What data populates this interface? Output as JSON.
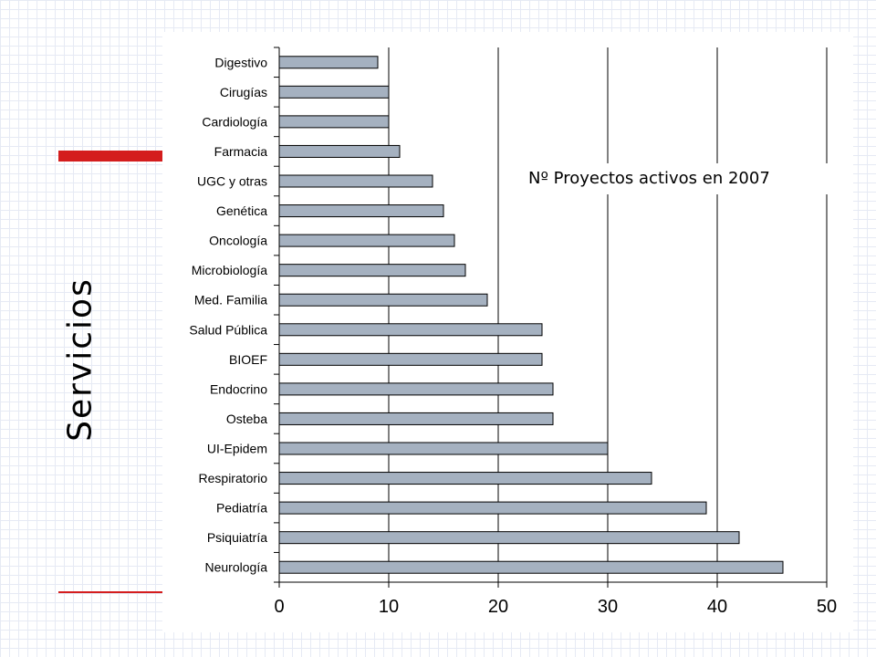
{
  "slide": {
    "side_title": "Servicios",
    "chart_label": "Nº Proyectos activos en 2007",
    "accent_color": "#d41d1d"
  },
  "chart_data": {
    "type": "bar",
    "orientation": "horizontal",
    "categories": [
      "Digestivo",
      "Cirugías",
      "Cardiología",
      "Farmacia",
      "UGC y otras",
      "Genética",
      "Oncología",
      "Microbiología",
      "Med. Familia",
      "Salud Pública",
      "BIOEF",
      "Endocrino",
      "Osteba",
      "UI-Epidem",
      "Respiratorio",
      "Pediatría",
      "Psiquiatría",
      "Neurología"
    ],
    "values": [
      9,
      10,
      10,
      11,
      14,
      15,
      16,
      17,
      19,
      24,
      24,
      25,
      25,
      30,
      34,
      39,
      42,
      46
    ],
    "xlim": [
      0,
      50
    ],
    "x_ticks": [
      "0",
      "10",
      "20",
      "30",
      "40",
      "50"
    ],
    "grid": "vertical lines at major ticks",
    "bar_color": "#a5b1c0",
    "bar_edge_color": "#000000"
  }
}
